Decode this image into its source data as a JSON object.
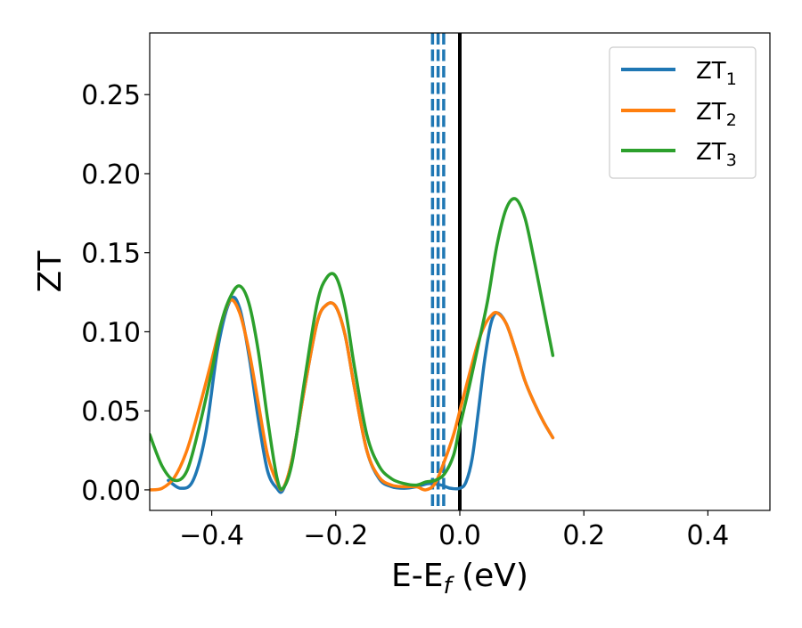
{
  "chart_data": {
    "type": "line",
    "title": "",
    "xlabel": "E-E",
    "xlabel_sub": "f",
    "xlabel_unit": " (eV)",
    "ylabel": "ZT",
    "xlim": [
      -0.5,
      0.5
    ],
    "ylim": [
      -0.013,
      0.289
    ],
    "xticks": [
      -0.4,
      -0.2,
      0.0,
      0.2,
      0.4
    ],
    "xtick_labels": [
      "−0.4",
      "−0.2",
      "0.0",
      "0.2",
      "0.4"
    ],
    "yticks": [
      0.0,
      0.05,
      0.1,
      0.15,
      0.2,
      0.25
    ],
    "ytick_labels": [
      "0.00",
      "0.05",
      "0.10",
      "0.15",
      "0.20",
      "0.25"
    ],
    "grid": false,
    "legend_position": "top-right",
    "vertical_lines": [
      {
        "x": -0.044,
        "color": "#1f77b4",
        "style": "dashed"
      },
      {
        "x": -0.035,
        "color": "#1f77b4",
        "style": "dashed"
      },
      {
        "x": -0.026,
        "color": "#1f77b4",
        "style": "dashed"
      },
      {
        "x": 0.0,
        "color": "#000000",
        "style": "solid"
      }
    ],
    "series": [
      {
        "name": "ZT",
        "name_sub": "1",
        "color": "#1f77b4",
        "x": [
          -0.47,
          -0.45,
          -0.43,
          -0.41,
          -0.39,
          -0.37,
          -0.355,
          -0.34,
          -0.325,
          -0.31,
          -0.295,
          -0.285,
          -0.27,
          -0.25,
          -0.23,
          -0.215,
          -0.2,
          -0.185,
          -0.17,
          -0.15,
          -0.13,
          -0.11,
          -0.09,
          -0.07,
          -0.05,
          -0.03,
          -0.015,
          0.0,
          0.01,
          0.02,
          0.03,
          0.04,
          0.05,
          0.06,
          0.075,
          0.09,
          0.105,
          0.12,
          0.135,
          0.15
        ],
        "y": [
          0.006,
          0.001,
          0.006,
          0.035,
          0.09,
          0.12,
          0.115,
          0.085,
          0.045,
          0.012,
          0.001,
          0.0,
          0.02,
          0.065,
          0.106,
          0.117,
          0.116,
          0.098,
          0.065,
          0.025,
          0.007,
          0.002,
          0.001,
          0.002,
          0.004,
          0.003,
          0.001,
          0.001,
          0.005,
          0.02,
          0.05,
          0.082,
          0.105,
          0.112,
          0.105,
          0.088,
          0.069,
          0.055,
          0.043,
          0.033
        ]
      },
      {
        "name": "ZT",
        "name_sub": "2",
        "color": "#ff7f0e",
        "x": [
          -0.5,
          -0.48,
          -0.46,
          -0.44,
          -0.42,
          -0.4,
          -0.385,
          -0.37,
          -0.355,
          -0.34,
          -0.325,
          -0.31,
          -0.295,
          -0.285,
          -0.27,
          -0.25,
          -0.23,
          -0.215,
          -0.2,
          -0.185,
          -0.17,
          -0.15,
          -0.13,
          -0.11,
          -0.09,
          -0.07,
          -0.055,
          -0.04,
          -0.025,
          -0.01,
          0.0,
          0.01,
          0.02,
          0.03,
          0.04,
          0.05,
          0.06,
          0.075,
          0.09,
          0.105,
          0.12,
          0.135,
          0.15
        ],
        "y": [
          0.0,
          0.001,
          0.008,
          0.025,
          0.052,
          0.082,
          0.105,
          0.12,
          0.112,
          0.088,
          0.055,
          0.022,
          0.005,
          0.001,
          0.02,
          0.065,
          0.106,
          0.117,
          0.116,
          0.098,
          0.065,
          0.025,
          0.008,
          0.003,
          0.002,
          0.002,
          0.0,
          0.004,
          0.018,
          0.035,
          0.05,
          0.065,
          0.08,
          0.094,
          0.104,
          0.11,
          0.112,
          0.105,
          0.088,
          0.069,
          0.055,
          0.043,
          0.033
        ]
      },
      {
        "name": "ZT",
        "name_sub": "3",
        "color": "#2ca02c",
        "x": [
          -0.5,
          -0.48,
          -0.46,
          -0.44,
          -0.42,
          -0.4,
          -0.385,
          -0.37,
          -0.355,
          -0.34,
          -0.325,
          -0.31,
          -0.295,
          -0.285,
          -0.27,
          -0.25,
          -0.23,
          -0.215,
          -0.2,
          -0.185,
          -0.17,
          -0.15,
          -0.13,
          -0.11,
          -0.09,
          -0.07,
          -0.055,
          -0.04,
          -0.025,
          -0.01,
          0.0,
          0.015,
          0.03,
          0.045,
          0.06,
          0.075,
          0.09,
          0.105,
          0.12,
          0.135,
          0.15
        ],
        "y": [
          0.035,
          0.015,
          0.006,
          0.012,
          0.04,
          0.075,
          0.105,
          0.122,
          0.129,
          0.118,
          0.088,
          0.045,
          0.008,
          0.001,
          0.018,
          0.07,
          0.118,
          0.134,
          0.135,
          0.115,
          0.078,
          0.035,
          0.015,
          0.007,
          0.004,
          0.003,
          0.005,
          0.006,
          0.01,
          0.022,
          0.04,
          0.065,
          0.092,
          0.12,
          0.155,
          0.178,
          0.184,
          0.172,
          0.145,
          0.115,
          0.085
        ]
      }
    ]
  }
}
